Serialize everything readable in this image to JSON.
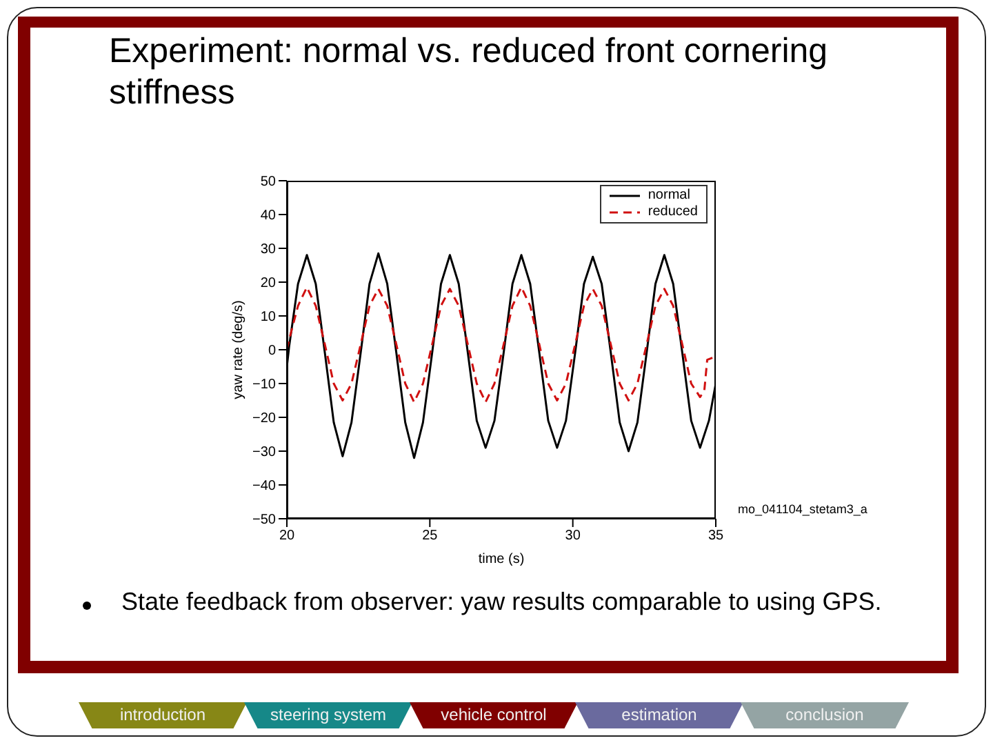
{
  "chart_data": {
    "type": "line",
    "title": "Experiment: normal vs. reduced front cornering stiffness",
    "xlabel": "time (s)",
    "ylabel": "yaw rate (deg/s)",
    "xlim": [
      20,
      35
    ],
    "xticks": [
      20,
      25,
      30,
      35
    ],
    "ylim": [
      -50,
      50
    ],
    "yticks": [
      -50,
      -40,
      -30,
      -20,
      -10,
      0,
      10,
      20,
      30,
      40,
      50
    ],
    "grid": false,
    "legend": "top right",
    "marker": "none",
    "series": [
      {
        "name": "normal",
        "color": "#000000",
        "line_style": "solid",
        "x": [
          20,
          20.08,
          20.39,
          20.7,
          21.01,
          21.33,
          21.64,
          21.95,
          22.26,
          22.58,
          22.89,
          23.2,
          23.51,
          23.83,
          24.14,
          24.45,
          24.76,
          25.08,
          25.39,
          25.7,
          26.01,
          26.33,
          26.64,
          26.95,
          27.26,
          27.58,
          27.89,
          28.2,
          28.51,
          28.83,
          29.14,
          29.45,
          29.76,
          30.08,
          30.39,
          30.7,
          31.01,
          31.33,
          31.64,
          31.95,
          32.26,
          32.58,
          32.89,
          33.2,
          33.51,
          33.83,
          34.14,
          34.45,
          34.76,
          35
        ],
        "values": [
          -5,
          1,
          19.5,
          28,
          19.5,
          -1,
          -21.5,
          -31.5,
          -21.5,
          -1,
          19.5,
          28.5,
          19.5,
          -1,
          -21.5,
          -32,
          -21.5,
          -1,
          19.5,
          28,
          19.5,
          -1,
          -21,
          -29,
          -21,
          -1,
          19.5,
          28,
          19.5,
          -1,
          -21,
          -29,
          -21,
          -1,
          19.5,
          27.5,
          19.5,
          -1,
          -21.5,
          -30,
          -21.5,
          -1,
          19.5,
          28,
          19.5,
          -1,
          -21,
          -29,
          -21,
          -10
        ]
      },
      {
        "name": "reduced",
        "color": "#d01010",
        "line_style": "dashed",
        "x": [
          20,
          20.08,
          20.39,
          20.7,
          21.01,
          21.33,
          21.64,
          21.95,
          22.26,
          22.58,
          22.89,
          23.2,
          23.51,
          23.83,
          24.14,
          24.45,
          24.76,
          25.08,
          25.39,
          25.7,
          26.01,
          26.33,
          26.64,
          26.95,
          27.26,
          27.58,
          27.89,
          28.2,
          28.51,
          28.83,
          29.14,
          29.45,
          29.76,
          30.08,
          30.39,
          30.7,
          31.01,
          31.33,
          31.64,
          31.95,
          32.26,
          32.58,
          32.89,
          33.2,
          33.51,
          33.83,
          34.14,
          34.45,
          34.6,
          34.7,
          35
        ],
        "values": [
          0,
          3,
          13,
          18.5,
          13,
          1.5,
          -10,
          -15,
          -10,
          1.5,
          13,
          18,
          13,
          1.5,
          -10,
          -15.5,
          -10,
          1.5,
          13,
          18,
          13,
          1.5,
          -10,
          -15.5,
          -10,
          1.5,
          13,
          18.5,
          13,
          1.5,
          -10,
          -15,
          -10,
          1.5,
          13,
          18,
          13,
          1.5,
          -10,
          -15,
          -10,
          1.5,
          13,
          18,
          13,
          1.5,
          -10,
          -14,
          -12,
          -3,
          -2
        ]
      }
    ],
    "annotations": [
      "mo_041104_stetam3_a",
      "State feedback from observer: yaw results comparable to using GPS.",
      "introduction",
      "steering system",
      "vehicle control",
      "estimation",
      "conclusion"
    ]
  }
}
